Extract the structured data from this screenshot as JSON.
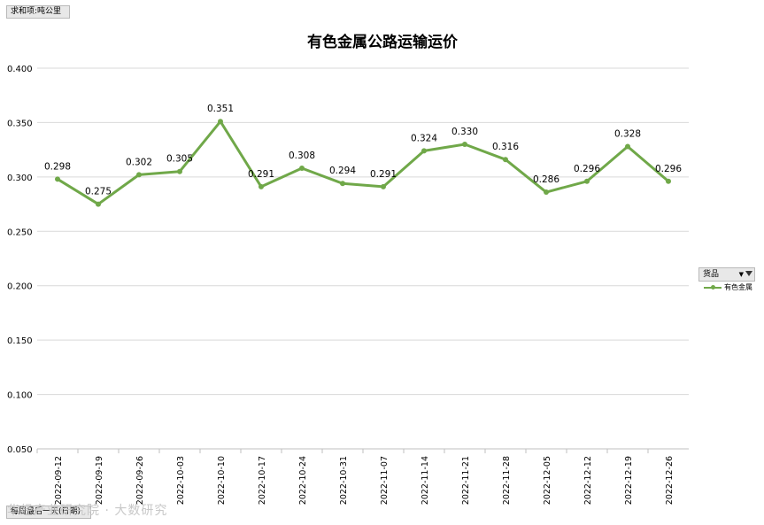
{
  "pivot": {
    "value_field": "求和项:吨公里",
    "row_field": "每周最后一天(日期)",
    "legend_field": "货品",
    "legend_dropdown": "▼"
  },
  "watermark": "华经产业研究院 · 大数研究",
  "colors": {
    "series": "#70a849",
    "grid": "#d9d9d9",
    "axis_text": "#000000"
  },
  "chart_data": {
    "type": "line",
    "title": "有色金属公路运输运价",
    "xlabel": "",
    "ylabel": "",
    "ylim": [
      0.05,
      0.4
    ],
    "yticks": [
      "0.050",
      "0.100",
      "0.150",
      "0.200",
      "0.250",
      "0.300",
      "0.350",
      "0.400"
    ],
    "grid": true,
    "legend_position": "right",
    "categories": [
      "2022-09-12",
      "2022-09-19",
      "2022-09-26",
      "2022-10-03",
      "2022-10-10",
      "2022-10-17",
      "2022-10-24",
      "2022-10-31",
      "2022-11-07",
      "2022-11-14",
      "2022-11-21",
      "2022-11-28",
      "2022-12-05",
      "2022-12-12",
      "2022-12-19",
      "2022-12-26"
    ],
    "series": [
      {
        "name": "有色金属",
        "values": [
          0.298,
          0.275,
          0.302,
          0.305,
          0.351,
          0.291,
          0.308,
          0.294,
          0.291,
          0.324,
          0.33,
          0.316,
          0.286,
          0.296,
          0.328,
          0.296
        ],
        "labels": [
          "0.298",
          "0.275",
          "0.302",
          "0.305",
          "0.351",
          "0.291",
          "0.308",
          "0.294",
          "0.291",
          "0.324",
          "0.330",
          "0.316",
          "0.286",
          "0.296",
          "0.328",
          "0.296"
        ]
      }
    ]
  }
}
